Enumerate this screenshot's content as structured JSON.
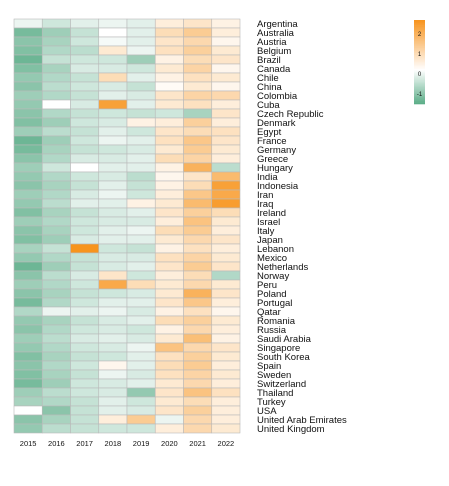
{
  "chart_data": {
    "type": "heatmap",
    "title": "",
    "xlabel": "",
    "ylabel": "",
    "x": [
      "2015",
      "2016",
      "2017",
      "2018",
      "2019",
      "2020",
      "2021",
      "2022"
    ],
    "y": [
      "Argentina",
      "Australia",
      "Austria",
      "Belgium",
      "Brazil",
      "Canada",
      "Chile",
      "China",
      "Colombia",
      "Cuba",
      "Czech Republic",
      "Denmark",
      "Egypt",
      "France",
      "Germany",
      "Greece",
      "Hungary",
      "India",
      "Indonesia",
      "Iran",
      "Iraq",
      "Ireland",
      "Israel",
      "Italy",
      "Japan",
      "Lebanon",
      "Mexico",
      "Netherlands",
      "Norway",
      "Peru",
      "Poland",
      "Portugal",
      "Qatar",
      "Romania",
      "Russia",
      "Saudi Arabia",
      "Singapore",
      "South Korea",
      "Spain",
      "Sweden",
      "Switzerland",
      "Thailand",
      "Turkey",
      "USA",
      "United Arab Emirates",
      "United Kingdom"
    ],
    "values": [
      [
        -0.2,
        -0.5,
        -0.3,
        -0.2,
        -0.3,
        0.4,
        0.6,
        0.3
      ],
      [
        -1.4,
        -1.0,
        -0.6,
        0.0,
        -0.3,
        0.8,
        1.2,
        0.4
      ],
      [
        -1.2,
        -0.9,
        -0.5,
        -0.1,
        -0.3,
        0.6,
        0.9,
        0.2
      ],
      [
        -1.3,
        -0.8,
        -0.7,
        0.5,
        -0.2,
        0.7,
        1.1,
        0.5
      ],
      [
        -1.5,
        -0.6,
        -0.5,
        -0.5,
        -1.0,
        0.3,
        0.8,
        0.6
      ],
      [
        -1.3,
        -0.9,
        -0.4,
        -0.4,
        -0.5,
        0.5,
        1.0,
        0.2
      ],
      [
        -1.1,
        -0.8,
        -0.6,
        0.8,
        -0.3,
        0.3,
        0.7,
        0.5
      ],
      [
        -1.2,
        -0.7,
        -0.5,
        -0.4,
        -0.6,
        0.1,
        0.5,
        0.2
      ],
      [
        -1.0,
        -0.8,
        -0.6,
        -0.3,
        -0.4,
        0.6,
        1.0,
        0.9
      ],
      [
        -1.1,
        0.0,
        -0.4,
        2.2,
        -0.3,
        0.5,
        0.7,
        0.4
      ],
      [
        -1.2,
        -0.8,
        -0.6,
        -0.5,
        -0.6,
        -0.5,
        -0.9,
        0.6
      ],
      [
        -1.3,
        -1.0,
        -0.5,
        -0.4,
        0.3,
        0.4,
        1.1,
        0.4
      ],
      [
        -1.0,
        -0.7,
        -0.6,
        -0.3,
        -0.5,
        0.6,
        0.8,
        0.7
      ],
      [
        -1.5,
        -1.0,
        -0.5,
        -0.2,
        -0.3,
        0.7,
        1.3,
        0.6
      ],
      [
        -1.4,
        -0.9,
        -0.6,
        -0.5,
        -0.4,
        0.5,
        1.2,
        0.5
      ],
      [
        -1.2,
        -0.8,
        -0.4,
        -0.4,
        -0.3,
        0.8,
        1.0,
        0.4
      ],
      [
        -1.0,
        -0.5,
        0.0,
        -0.3,
        -0.3,
        0.3,
        1.8,
        -0.7
      ],
      [
        -1.1,
        -0.8,
        -0.5,
        -0.4,
        -0.7,
        0.2,
        0.6,
        1.6
      ],
      [
        -1.2,
        -0.9,
        -0.6,
        -0.3,
        -0.6,
        0.3,
        0.8,
        2.2
      ],
      [
        -1.0,
        -0.8,
        -0.4,
        -0.2,
        -0.5,
        0.4,
        1.3,
        2.0
      ],
      [
        -1.1,
        -0.7,
        -0.3,
        -0.3,
        0.3,
        0.5,
        1.6,
        2.3
      ],
      [
        -1.3,
        -0.9,
        -0.6,
        -0.4,
        -0.3,
        0.6,
        1.1,
        0.8
      ],
      [
        -1.0,
        -0.8,
        -0.5,
        -0.4,
        -0.4,
        0.4,
        1.4,
        0.5
      ],
      [
        -1.2,
        -0.9,
        -0.5,
        -0.3,
        -0.2,
        0.8,
        1.2,
        0.4
      ],
      [
        -1.3,
        -1.0,
        -0.4,
        -0.3,
        -0.3,
        0.5,
        0.9,
        0.6
      ],
      [
        -0.9,
        -0.6,
        2.5,
        -0.5,
        -0.6,
        0.3,
        0.7,
        0.4
      ],
      [
        -1.1,
        -0.8,
        -0.6,
        -0.4,
        -0.4,
        0.7,
        1.0,
        0.5
      ],
      [
        -1.5,
        -1.0,
        -0.6,
        -0.4,
        -0.3,
        0.6,
        1.2,
        0.6
      ],
      [
        -1.2,
        -0.7,
        -0.4,
        0.6,
        -0.5,
        0.4,
        0.8,
        -0.8
      ],
      [
        -1.0,
        -0.8,
        -0.5,
        2.0,
        0.8,
        0.5,
        0.9,
        0.5
      ],
      [
        -1.2,
        -0.9,
        -0.6,
        -0.5,
        -0.4,
        0.5,
        1.8,
        0.6
      ],
      [
        -1.4,
        -0.8,
        -0.5,
        -0.3,
        -0.3,
        0.6,
        1.3,
        0.4
      ],
      [
        -0.8,
        -0.2,
        -0.3,
        -0.2,
        -0.4,
        0.3,
        0.7,
        0.2
      ],
      [
        -1.1,
        -0.9,
        -0.6,
        -0.4,
        -0.3,
        0.8,
        1.1,
        0.5
      ],
      [
        -1.2,
        -0.8,
        -0.5,
        -0.4,
        -0.5,
        0.3,
        0.9,
        0.4
      ],
      [
        -1.0,
        -0.7,
        -0.4,
        -0.3,
        -0.4,
        0.5,
        1.5,
        0.3
      ],
      [
        -1.1,
        -0.8,
        -0.5,
        -0.4,
        -0.2,
        1.4,
        0.9,
        0.6
      ],
      [
        -1.3,
        -0.9,
        -0.6,
        -0.5,
        -0.3,
        0.7,
        1.1,
        0.5
      ],
      [
        -1.2,
        -0.8,
        -0.5,
        0.2,
        -0.3,
        0.8,
        1.2,
        0.4
      ],
      [
        -1.3,
        -0.9,
        -0.6,
        -0.2,
        -0.4,
        0.7,
        1.0,
        0.5
      ],
      [
        -1.4,
        -1.0,
        -0.5,
        -0.4,
        -0.3,
        0.5,
        0.9,
        0.4
      ],
      [
        -1.0,
        -0.7,
        -0.5,
        -0.4,
        -1.1,
        0.6,
        1.4,
        0.7
      ],
      [
        -0.9,
        -0.8,
        -0.6,
        -0.3,
        -0.5,
        0.5,
        0.8,
        0.4
      ],
      [
        0.0,
        -1.2,
        -0.6,
        -0.3,
        -0.4,
        0.6,
        1.1,
        0.4
      ],
      [
        -1.2,
        -0.9,
        -0.6,
        0.4,
        1.2,
        -0.2,
        0.9,
        0.4
      ],
      [
        -1.1,
        -0.7,
        -0.6,
        -0.5,
        -0.5,
        0.4,
        0.9,
        0.5
      ]
    ],
    "vmin": -1.7,
    "vmax": 2.5,
    "colorscale": {
      "low": "#5aac87",
      "mid": "#ffffff",
      "high": "#f7941d"
    },
    "colorbar": {
      "ticks": [
        -1,
        0,
        1,
        2
      ],
      "tick_labels": [
        "-1",
        "0",
        "1",
        "2"
      ]
    },
    "grid": false,
    "legend": "top-right colorbar"
  }
}
